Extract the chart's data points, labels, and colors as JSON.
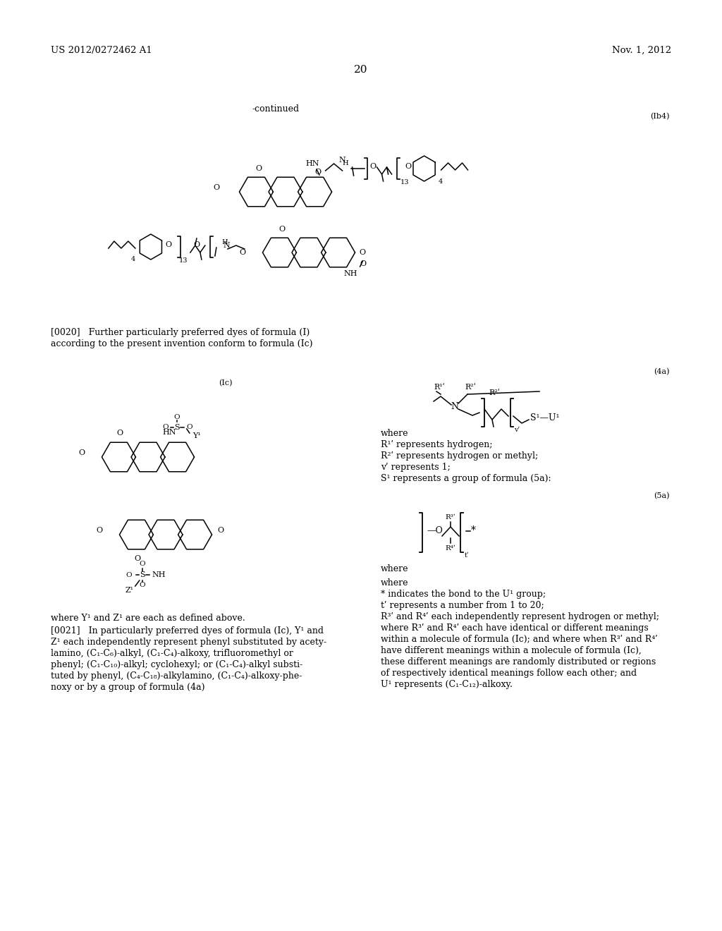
{
  "bg_color": "#ffffff",
  "header_left": "US 2012/0272462 A1",
  "header_right": "Nov. 1, 2012",
  "page_number": "20",
  "continued_text": "-continued",
  "formula_ib4": "(Ib4)",
  "formula_lc": "(Ic)",
  "formula_4a": "(4a)",
  "formula_5a": "(5a)",
  "para_0020_lines": [
    "[0020]   Further particularly preferred dyes of formula (I)",
    "according to the present invention conform to formula (Ic)"
  ],
  "where_yz": "where Y¹ and Z¹ are each as defined above.",
  "para_0021_lines": [
    "[0021]   In particularly preferred dyes of formula (Ic), Y¹ and",
    "Z¹ each independently represent phenyl substituted by acety-",
    "lamino, (C₁-C₆)-alkyl, (C₁-C₄)-alkoxy, trifluoromethyl or",
    "phenyl; (C₁-C₁₀)-alkyl; cyclohexyl; or (C₁-C₄)-alkyl substi-",
    "tuted by phenyl, (C₄-C₁₈)-alkylamino, (C₁-C₄)-alkoxy-phe-",
    "noxy or by a group of formula (4a)"
  ],
  "where_4a_lines": [
    "where",
    "R¹ʹ represents hydrogen;",
    "R²ʹ represents hydrogen or methyl;",
    "vʹ represents 1;",
    "S¹ represents a group of formula (5a):"
  ],
  "where_5a_lines": [
    "where",
    "* indicates the bond to the U¹ group;",
    "tʹ represents a number from 1 to 20;",
    "R³ʹ and R⁴ʹ each independently represent hydrogen or methyl;",
    "where R³ʹ and R⁴ʹ each have identical or different meanings",
    "within a molecule of formula (Ic); and where when R³ʹ and R⁴ʹ",
    "have different meanings within a molecule of formula (Ic),",
    "these different meanings are randomly distributed or regions",
    "of respectively identical meanings follow each other; and",
    "U¹ represents (C₁-C₁₂)-alkoxy."
  ]
}
